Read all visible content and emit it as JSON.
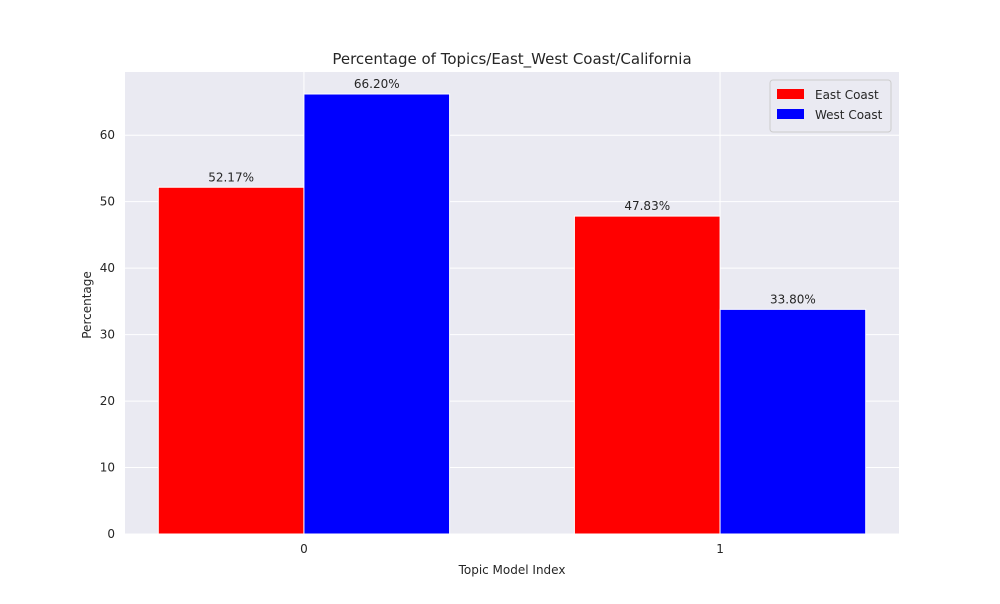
{
  "chart_data": {
    "type": "bar",
    "title": "Percentage of Topics/East_West Coast/California",
    "xlabel": "Topic Model Index",
    "ylabel": "Percentage",
    "categories": [
      "0",
      "1"
    ],
    "series": [
      {
        "name": "East Coast",
        "color": "#ff0000",
        "values": [
          52.17,
          47.83
        ],
        "labels": [
          "52.17%",
          "47.83%"
        ]
      },
      {
        "name": "West Coast",
        "color": "#0000ff",
        "values": [
          66.2,
          33.8
        ],
        "labels": [
          "66.20%",
          "33.80%"
        ]
      }
    ],
    "ylim": [
      0,
      69.51
    ],
    "yticks": [
      "0",
      "10",
      "20",
      "30",
      "40",
      "50",
      "60"
    ],
    "grid": true,
    "legend_position": "top-right",
    "background_color": "#eaeaf2",
    "grid_color": "#ffffff"
  }
}
